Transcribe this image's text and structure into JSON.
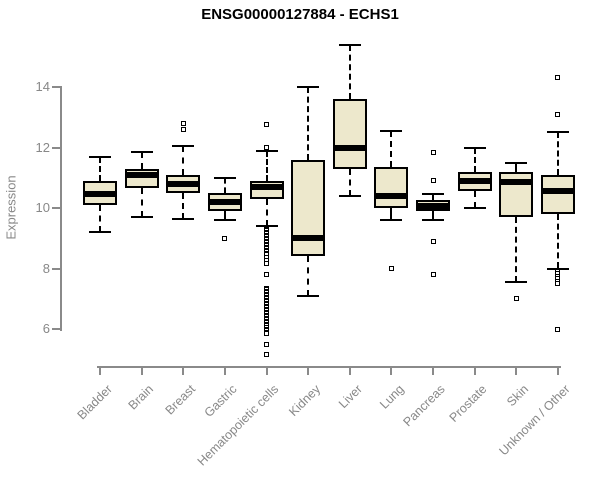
{
  "chart_data": {
    "type": "boxplot",
    "title": "ENSG00000127884 - ECHS1",
    "ylabel": "Expression",
    "xlabel": "",
    "yticks": [
      14,
      12,
      10,
      8,
      6
    ],
    "ylim": [
      5.0,
      15.6
    ],
    "grid": false,
    "legend": "none",
    "colors": {
      "box_fill": "#EDE8CC",
      "box_border": "#000000",
      "median": "#000000",
      "whisker": "#000000",
      "axis": "#8a8a8a",
      "axis_text": "#888888",
      "title_text": "#000000",
      "background": "#ffffff"
    },
    "categories": [
      "Bladder",
      "Brain",
      "Breast",
      "Gastric",
      "Hematopoietic cells",
      "Kidney",
      "Liver",
      "Lung",
      "Pancreas",
      "Prostate",
      "Skin",
      "Unknown / Other"
    ],
    "boxes": [
      {
        "category": "Bladder",
        "whisker_low": 9.2,
        "q1": 10.1,
        "median": 10.45,
        "q3": 10.9,
        "whisker_high": 11.7,
        "outliers": []
      },
      {
        "category": "Brain",
        "whisker_low": 9.7,
        "q1": 10.65,
        "median": 11.1,
        "q3": 11.3,
        "whisker_high": 11.85,
        "outliers": []
      },
      {
        "category": "Breast",
        "whisker_low": 9.65,
        "q1": 10.5,
        "median": 10.8,
        "q3": 11.1,
        "whisker_high": 12.05,
        "outliers": [
          12.8,
          12.6
        ]
      },
      {
        "category": "Gastric",
        "whisker_low": 9.6,
        "q1": 9.9,
        "median": 10.2,
        "q3": 10.5,
        "whisker_high": 11.0,
        "outliers": [
          9.0
        ]
      },
      {
        "category": "Hematopoietic cells",
        "whisker_low": 9.4,
        "q1": 10.3,
        "median": 10.7,
        "q3": 10.9,
        "whisker_high": 11.9,
        "outliers": [
          12.75,
          12.0,
          9.3,
          9.25,
          9.2,
          9.15,
          9.1,
          9.05,
          9.0,
          8.95,
          8.9,
          8.85,
          8.8,
          8.75,
          8.7,
          8.65,
          8.6,
          8.55,
          8.5,
          8.45,
          8.35,
          8.25,
          8.15,
          7.8,
          7.35,
          7.3,
          7.25,
          7.2,
          7.15,
          7.1,
          7.05,
          7.0,
          6.95,
          6.9,
          6.85,
          6.8,
          6.75,
          6.7,
          6.65,
          6.6,
          6.55,
          6.5,
          6.45,
          6.4,
          6.35,
          6.3,
          6.25,
          6.2,
          6.15,
          6.1,
          6.05,
          6.0,
          5.95,
          5.9,
          5.85,
          5.5,
          5.15
        ]
      },
      {
        "category": "Kidney",
        "whisker_low": 7.1,
        "q1": 8.4,
        "median": 9.0,
        "q3": 11.6,
        "whisker_high": 14.0,
        "outliers": []
      },
      {
        "category": "Liver",
        "whisker_low": 10.4,
        "q1": 11.3,
        "median": 12.0,
        "q3": 13.6,
        "whisker_high": 15.4,
        "outliers": []
      },
      {
        "category": "Lung",
        "whisker_low": 9.6,
        "q1": 10.0,
        "median": 10.4,
        "q3": 11.35,
        "whisker_high": 12.55,
        "outliers": [
          8.0
        ]
      },
      {
        "category": "Pancreas",
        "whisker_low": 9.6,
        "q1": 9.9,
        "median": 10.05,
        "q3": 10.25,
        "whisker_high": 10.45,
        "outliers": [
          11.85,
          10.9,
          8.9,
          7.8
        ]
      },
      {
        "category": "Prostate",
        "whisker_low": 10.0,
        "q1": 10.55,
        "median": 10.9,
        "q3": 11.2,
        "whisker_high": 12.0,
        "outliers": []
      },
      {
        "category": "Skin",
        "whisker_low": 7.55,
        "q1": 9.7,
        "median": 10.85,
        "q3": 11.2,
        "whisker_high": 11.5,
        "outliers": [
          7.0
        ]
      },
      {
        "category": "Unknown / Other",
        "whisker_low": 8.0,
        "q1": 9.8,
        "median": 10.55,
        "q3": 11.1,
        "whisker_high": 12.5,
        "outliers": [
          14.3,
          13.1,
          7.9,
          7.82,
          7.74,
          7.66,
          7.58,
          7.5,
          6.0
        ]
      }
    ]
  }
}
